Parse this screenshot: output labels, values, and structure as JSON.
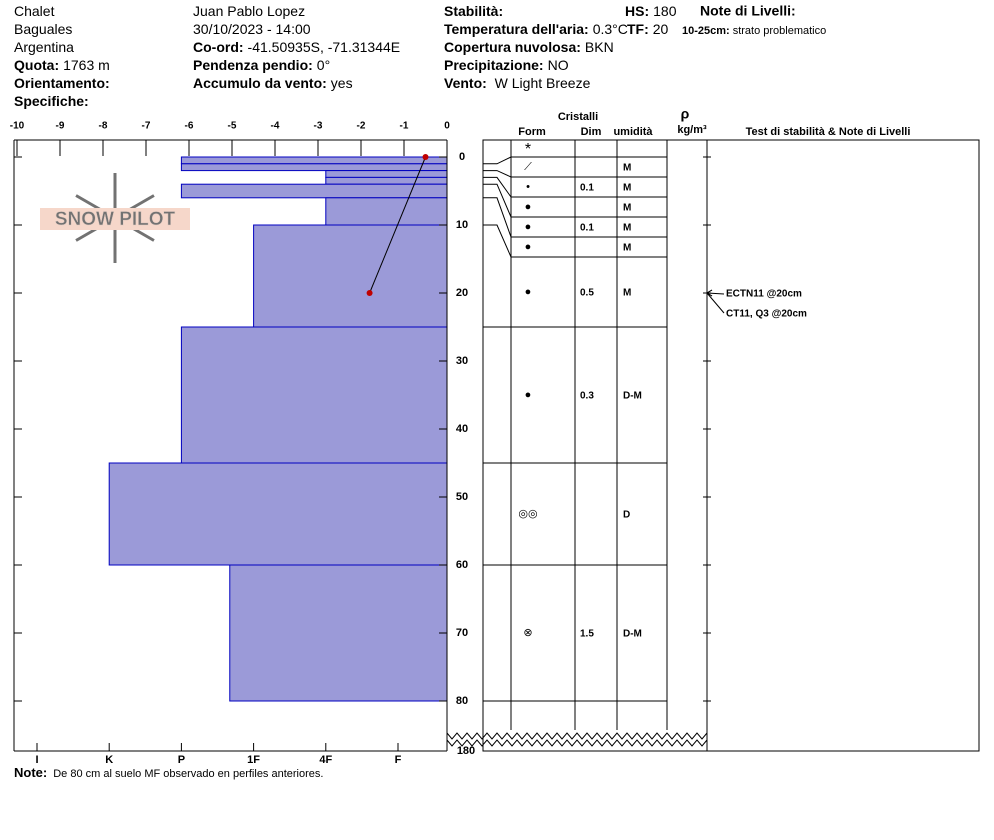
{
  "header": {
    "columns": [
      [
        {
          "value": "Chalet"
        },
        {
          "value": "Baguales"
        },
        {
          "value": "Argentina"
        },
        {
          "label": "Quota:",
          "value": "1763 m"
        },
        {
          "label": "Orientamento:"
        },
        {
          "label": "Specifiche:"
        }
      ],
      [
        {
          "value": "Juan Pablo  Lopez"
        },
        {
          "value": "30/10/2023 - 14:00"
        },
        {
          "label": "Co-ord:",
          "value": "-41.50935S, -71.31344E"
        },
        {
          "label": "Pendenza pendio:",
          "value": "0°"
        },
        {
          "label": "Accumulo da vento:",
          "value": "yes"
        }
      ],
      [
        {
          "label": "Stabilità:"
        },
        {
          "label": "Temperatura dell'aria:",
          "value": "0.3°C"
        },
        {
          "label": "Copertura nuvolosa:",
          "value": "BKN"
        },
        {
          "label": "Precipitazione:",
          "value": "NO"
        },
        {
          "label": "Vento:",
          "value": " W Light Breeze"
        }
      ],
      [
        {
          "label": "HS:",
          "value": "180"
        },
        {
          "label": "TF:",
          "value": "20"
        }
      ]
    ],
    "notes_title": "Note di Livelli:",
    "notes": [
      {
        "label": "10-25cm:",
        "value": "strato problematico"
      }
    ]
  },
  "logo": "SNOW PILOT",
  "chart_data": {
    "type": "snow-profile",
    "color": "#9b9ad8",
    "temperature_color": "#c00000",
    "xlim": [
      -10,
      0
    ],
    "xticks": [
      -10,
      -9,
      -8,
      -7,
      -6,
      -5,
      -4,
      -3,
      -2,
      -1,
      0
    ],
    "ylim": [
      0,
      80
    ],
    "yticks": [
      0,
      10,
      20,
      30,
      40,
      50,
      60,
      70,
      80
    ],
    "total_depth": 180,
    "hardness_ticks": [
      {
        "value": 6,
        "label": "I"
      },
      {
        "value": 5,
        "label": "K"
      },
      {
        "value": 4,
        "label": "P"
      },
      {
        "value": 3,
        "label": "1F"
      },
      {
        "value": 2,
        "label": "4F"
      },
      {
        "value": 1,
        "label": "F"
      }
    ],
    "temperature": {
      "depth": [
        0,
        20
      ],
      "values": [
        -0.5,
        -1.8
      ]
    },
    "layers": [
      {
        "top": 0,
        "bottom": 1,
        "hardness": 4,
        "form": "*",
        "size": null,
        "moisture": null
      },
      {
        "top": 1,
        "bottom": 2,
        "hardness": 4,
        "form": "⟋",
        "size": null,
        "moisture": "M"
      },
      {
        "top": 2,
        "bottom": 3,
        "hardness": 2,
        "form": "•",
        "size": 0.1,
        "moisture": "M"
      },
      {
        "top": 3,
        "bottom": 4,
        "hardness": 2,
        "form": "●",
        "size": null,
        "moisture": "M"
      },
      {
        "top": 4,
        "bottom": 6,
        "hardness": 4,
        "form": "●",
        "size": 0.1,
        "moisture": "M"
      },
      {
        "top": 6,
        "bottom": 10,
        "hardness": 2,
        "form": "●",
        "size": null,
        "moisture": "M"
      },
      {
        "top": 10,
        "bottom": 25,
        "hardness": 3,
        "form": "●",
        "size": 0.5,
        "moisture": "M"
      },
      {
        "top": 25,
        "bottom": 45,
        "hardness": 4,
        "form": "●",
        "size": 0.3,
        "moisture": "D-M"
      },
      {
        "top": 45,
        "bottom": 60,
        "hardness": 5,
        "form": "◎◎",
        "size": null,
        "moisture": "D"
      },
      {
        "top": 60,
        "bottom": 80,
        "hardness": 3.33,
        "form": "⊗",
        "size": 1.5,
        "moisture": "D-M"
      }
    ]
  },
  "columns": {
    "crystals": "Cristalli",
    "form": "Form",
    "size": "Dim",
    "moisture": "umidità",
    "density_symbol": "ρ",
    "density_unit": "kg/m³",
    "tests": "Test di stabilità & Note di Livelli"
  },
  "tests": [
    {
      "label": "ECTN11 @20cm",
      "depth": 20
    },
    {
      "label": "CT11, Q3 @20cm",
      "depth": 20
    }
  ],
  "note": {
    "label": "Note:",
    "text": "De 80 cm al suelo MF observado en perfiles anteriores."
  }
}
